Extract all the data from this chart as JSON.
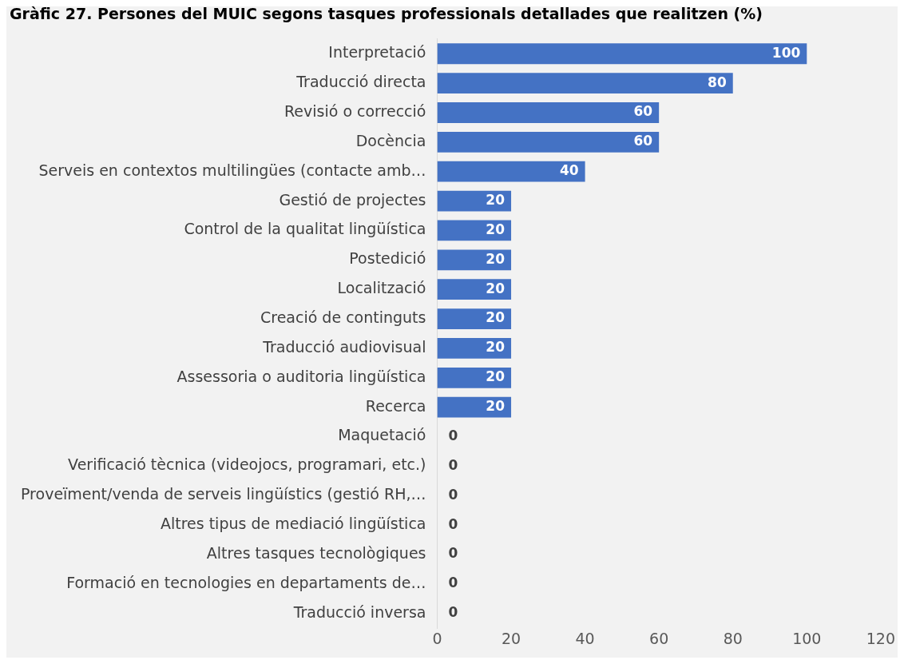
{
  "chart_data": {
    "type": "bar",
    "orientation": "horizontal",
    "title": "Gràfic 27. Persones del MUIC segons tasques professionals detallades que realitzen (%)",
    "categories": [
      "Interpretació",
      "Traducció directa",
      "Revisió o correcció",
      "Docència",
      "Serveis en contextos multilingües (contacte amb…",
      "Gestió de projectes",
      "Control de la qualitat lingüística",
      "Postedició",
      "Localització",
      "Creació de continguts",
      "Traducció audiovisual",
      "Assessoria o auditoria lingüística",
      "Recerca",
      "Maquetació",
      "Verificació tècnica (videojocs, programari, etc.)",
      "Proveïment/venda de serveis lingüístics (gestió RH,…",
      "Altres tipus de mediació lingüística",
      "Altres tasques tecnològiques",
      "Formació en tecnologies en departaments de…",
      "Traducció inversa"
    ],
    "values": [
      100,
      80,
      60,
      60,
      40,
      20,
      20,
      20,
      20,
      20,
      20,
      20,
      20,
      0,
      0,
      0,
      0,
      0,
      0,
      0
    ],
    "color": "#4472c4",
    "xlim": [
      0,
      120
    ],
    "xticks": [
      0,
      20,
      40,
      60,
      80,
      100,
      120
    ],
    "grid": false,
    "legend": false,
    "data_labels": true
  }
}
